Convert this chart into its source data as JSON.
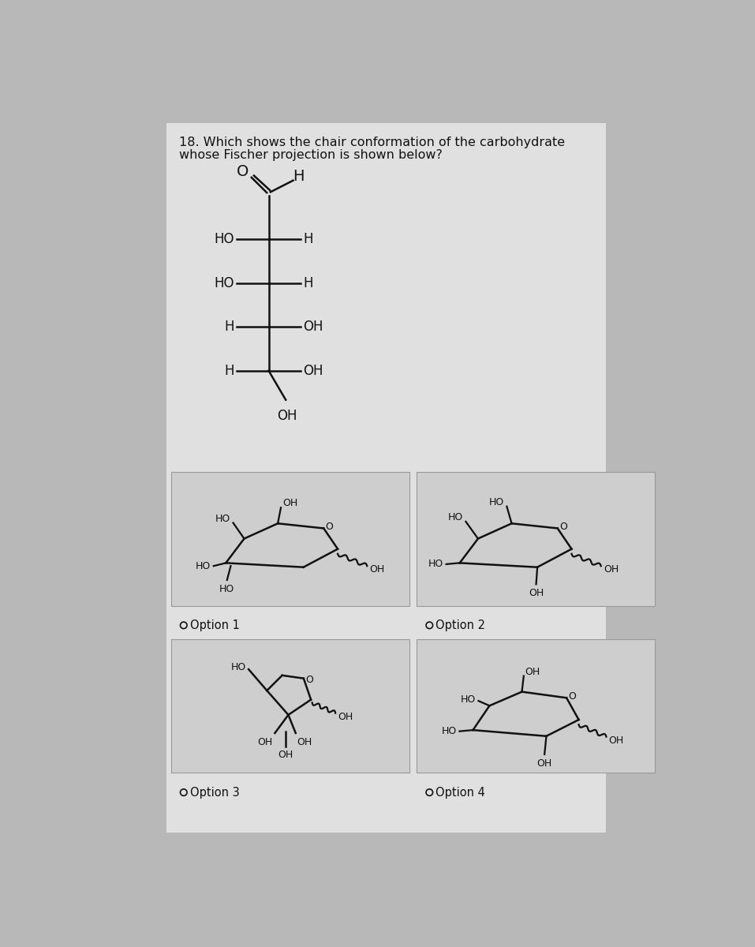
{
  "title_line1": "18. Which shows the chair conformation of the carbohydrate",
  "title_line2": "whose Fischer projection is shown below?",
  "bg_color": "#b8b8b8",
  "paper_color": "#e0e0e0",
  "box_color": "#d0d0d0",
  "text_color": "#111111",
  "option_labels": [
    "Option 1",
    "Option 2",
    "Option 3",
    "Option 4"
  ],
  "title_fontsize": 11.5,
  "label_fontsize": 10.5,
  "chem_fontsize": 11
}
